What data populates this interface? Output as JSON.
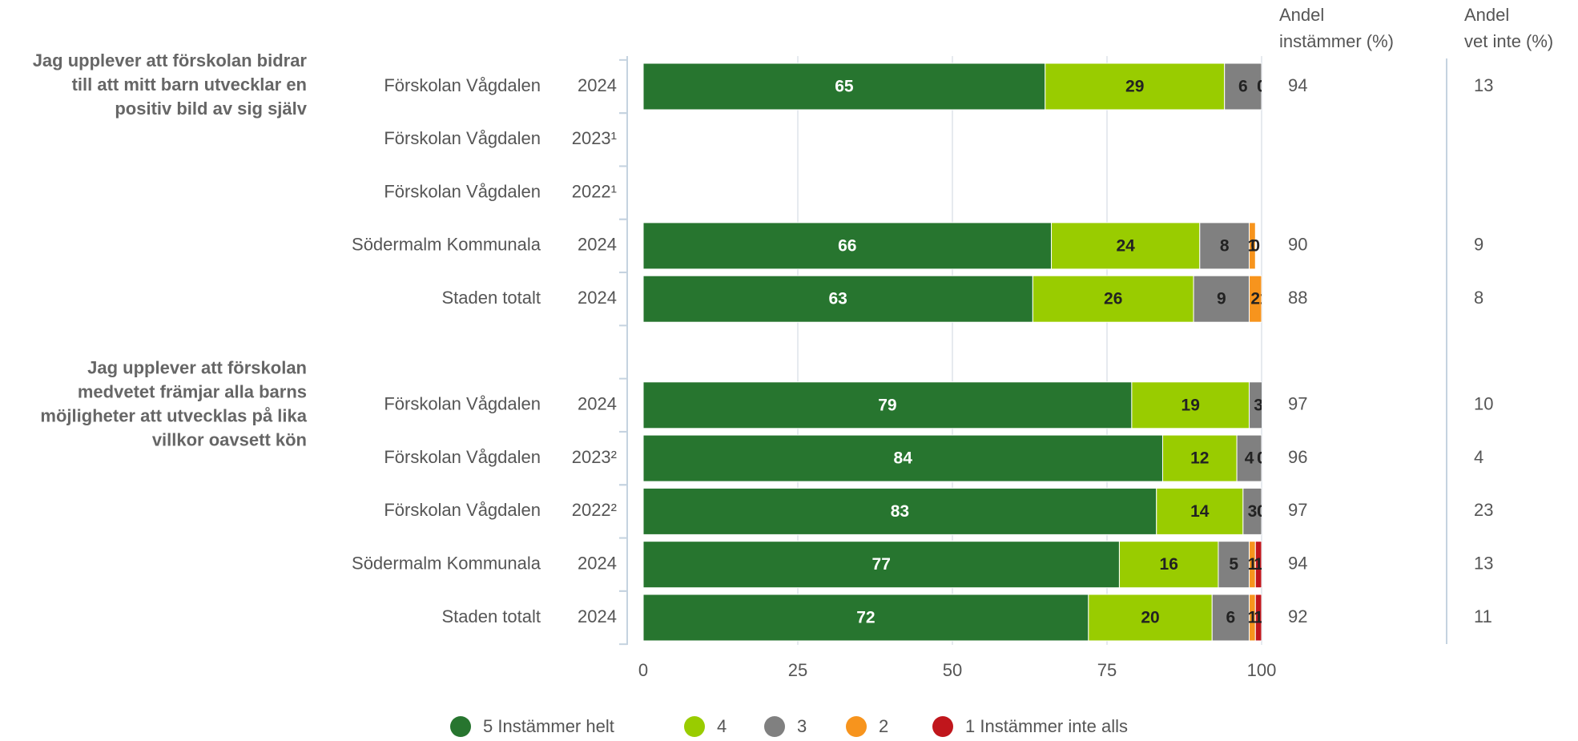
{
  "chart_data": {
    "type": "stacked-barh",
    "groups": [
      {
        "label": [
          "Jag upplever att förskolan bidrar",
          "till att mitt barn utvecklar en",
          "positiv bild av sig själv"
        ],
        "categories": [
          "Förskolan Vågdalen",
          "Förskolan Vågdalen",
          "Förskolan Vågdalen",
          "Södermalm Kommunala",
          "Staden totalt"
        ],
        "years": [
          "2024",
          "2023¹",
          "2022¹",
          "2024",
          "2024"
        ]
      },
      {
        "label": [
          "Jag upplever att förskolan",
          "medvetet främjar alla barns",
          "möjligheter att utvecklas på lika",
          "villkor oavsett kön"
        ],
        "categories": [
          "Förskolan Vågdalen",
          "Förskolan Vågdalen",
          "Förskolan Vågdalen",
          "Södermalm Kommunala",
          "Staden totalt"
        ],
        "years": [
          "2024",
          "2023²",
          "2022²",
          "2024",
          "2024"
        ]
      }
    ],
    "series": [
      {
        "name": "5 Instämmer helt",
        "color": "#27752f",
        "values": [
          65,
          null,
          null,
          66,
          63,
          79,
          84,
          83,
          77,
          72
        ]
      },
      {
        "name": "4",
        "color": "#99cc00",
        "values": [
          29,
          null,
          null,
          24,
          26,
          19,
          12,
          14,
          16,
          20
        ]
      },
      {
        "name": "3",
        "color": "#808080",
        "values": [
          6,
          null,
          null,
          8,
          9,
          3,
          4,
          3,
          5,
          6
        ]
      },
      {
        "name": "2",
        "color": "#f7941d",
        "values": [
          0,
          null,
          null,
          1,
          2,
          0,
          0,
          0,
          1,
          1
        ]
      },
      {
        "name": "1 Instämmer inte alls",
        "color": "#c0161c",
        "values": [
          0,
          null,
          null,
          0,
          1,
          0,
          0,
          0,
          1,
          1
        ]
      }
    ],
    "columns": [
      {
        "title": [
          "Andel",
          "instämmer (%)"
        ],
        "values": [
          94,
          null,
          null,
          90,
          88,
          97,
          96,
          97,
          94,
          92
        ]
      },
      {
        "title": [
          "Andel",
          "vet inte (%)"
        ],
        "values": [
          13,
          null,
          null,
          9,
          8,
          10,
          4,
          23,
          13,
          11
        ]
      }
    ],
    "xlim": [
      0,
      100
    ],
    "xticks": [
      0,
      25,
      50,
      75,
      100
    ],
    "grid": true
  }
}
